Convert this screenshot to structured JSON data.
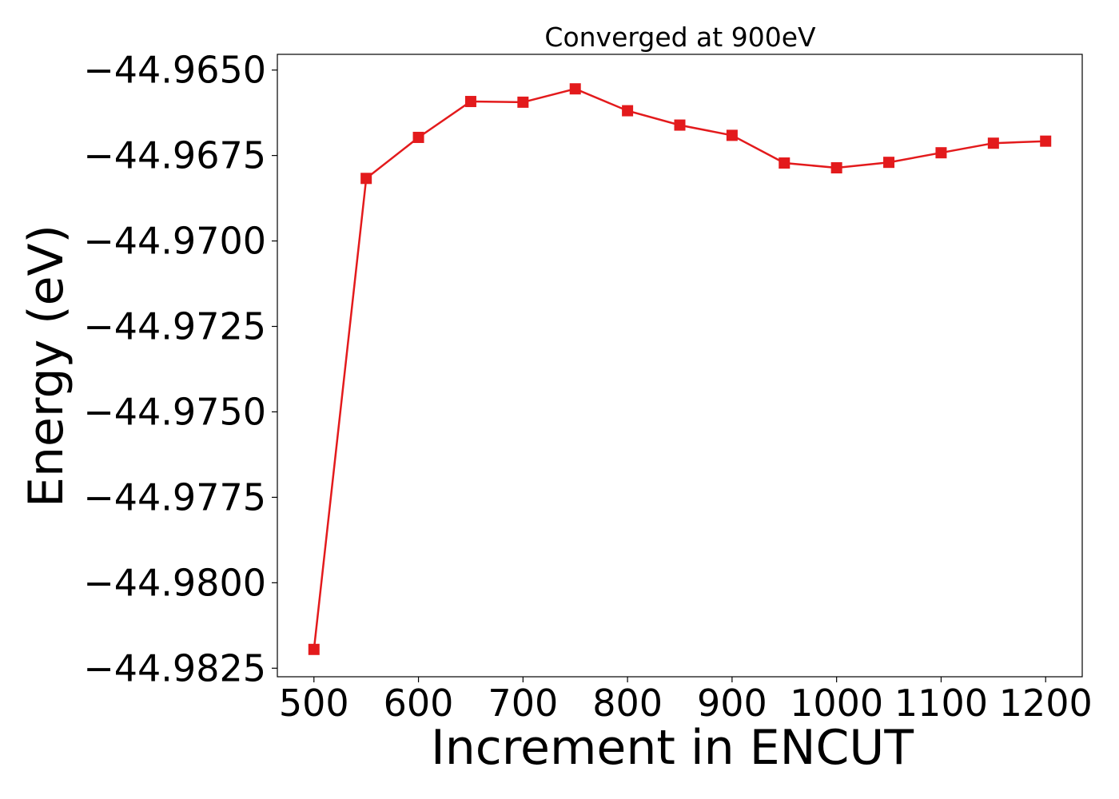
{
  "chart_data": {
    "type": "line",
    "title": "Converged at 900eV",
    "xlabel": "Increment in ENCUT",
    "ylabel": "Energy (eV)",
    "x": [
      500,
      550,
      600,
      650,
      700,
      750,
      800,
      850,
      900,
      950,
      1000,
      1050,
      1100,
      1150,
      1200
    ],
    "series": [
      {
        "values": [
          -44.98195,
          -44.96817,
          -44.96697,
          -44.96592,
          -44.96594,
          -44.96555,
          -44.96619,
          -44.96661,
          -44.96691,
          -44.96772,
          -44.96786,
          -44.9677,
          -44.96742,
          -44.96714,
          -44.96708
        ],
        "color": "#e31a1c",
        "marker": "square"
      }
    ],
    "xlim": [
      465,
      1235
    ],
    "ylim": [
      -44.98275,
      -44.96454
    ],
    "xticks": [
      500,
      600,
      700,
      800,
      900,
      1000,
      1100,
      1200
    ],
    "xtick_labels": [
      "500",
      "600",
      "700",
      "800",
      "900",
      "1000",
      "1100",
      "1200"
    ],
    "yticks": [
      -44.965,
      -44.9675,
      -44.97,
      -44.9725,
      -44.975,
      -44.9775,
      -44.98,
      -44.9825
    ],
    "ytick_labels": [
      "−44.9650",
      "−44.9675",
      "−44.9700",
      "−44.9725",
      "−44.9750",
      "−44.9775",
      "−44.9800",
      "−44.9825"
    ],
    "grid": false,
    "legend": "none"
  }
}
